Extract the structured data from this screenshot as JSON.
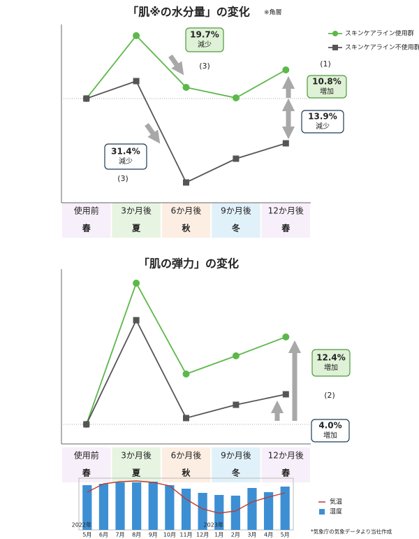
{
  "chart_data": [
    {
      "type": "line",
      "title": "「肌※の水分量」の変化",
      "title_note": "※角層",
      "categories": [
        "使用前",
        "3か月後",
        "6か月後",
        "9か月後",
        "12か月後"
      ],
      "seasons": [
        "春",
        "夏",
        "秋",
        "冬",
        "春"
      ],
      "season_colors": [
        "#f7eff9",
        "#e7f4e2",
        "#fdeee3",
        "#e1f1fa",
        "#f7eff9"
      ],
      "series": [
        {
          "name": "スキンケアライン使用群",
          "color": "#5cb84a",
          "marker": "circle",
          "values": [
            0,
            90,
            16,
            1,
            41
          ]
        },
        {
          "name": "スキンケアライン不使用群",
          "color": "#555555",
          "marker": "square",
          "values": [
            0,
            25,
            -120,
            -86,
            -64
          ]
        }
      ],
      "ylim": [
        -149,
        106
      ],
      "callouts": [
        [
          "19.7%",
          "減少"
        ],
        [
          "10.8%",
          "増加"
        ],
        [
          "13.9%",
          "減少"
        ],
        [
          "31.4%",
          "減少"
        ]
      ],
      "notes": [
        "(3)",
        "(1)",
        "(3)"
      ]
    },
    {
      "type": "line",
      "title": "「肌の弾力」の変化",
      "categories": [
        "使用前",
        "3か月後",
        "6か月後",
        "9か月後",
        "12か月後"
      ],
      "seasons": [
        "春",
        "夏",
        "秋",
        "冬",
        "春"
      ],
      "season_colors": [
        "#f7eff9",
        "#e7f4e2",
        "#fdeee3",
        "#e1f1fa",
        "#f7eff9"
      ],
      "series": [
        {
          "color": "#5cb84a",
          "marker": "circle",
          "values": [
            0,
            202,
            72,
            98,
            125
          ]
        },
        {
          "color": "#555555",
          "marker": "square",
          "values": [
            0,
            149,
            9,
            28,
            43
          ]
        }
      ],
      "ylim": [
        -28,
        222
      ],
      "callouts": [
        [
          "12.4%",
          "増加"
        ],
        [
          "4.0%",
          "増加"
        ]
      ],
      "notes": [
        "(2)"
      ]
    },
    {
      "type": "combo",
      "categories": [
        "5月",
        "6月",
        "7月",
        "8月",
        "9月",
        "10月",
        "11月",
        "12月",
        "1月",
        "2月",
        "3月",
        "4月",
        "5月"
      ],
      "years": [
        "2022年",
        null,
        null,
        null,
        null,
        null,
        null,
        null,
        "2023年",
        null,
        null,
        null,
        null
      ],
      "series": [
        {
          "name": "気温",
          "type": "line",
          "color": "#c0392b",
          "values": [
            54,
            66,
            69,
            70,
            68,
            63,
            44,
            30,
            24,
            27,
            40,
            47,
            53
          ]
        },
        {
          "name": "湿度",
          "type": "bar",
          "color": "#3d8fd4",
          "values": [
            64,
            66,
            68,
            68,
            69,
            64,
            59,
            53,
            50,
            49,
            60,
            54,
            62
          ]
        }
      ],
      "ylim": [
        0,
        72
      ],
      "source": "*気象庁の気象データより当社作成"
    }
  ]
}
